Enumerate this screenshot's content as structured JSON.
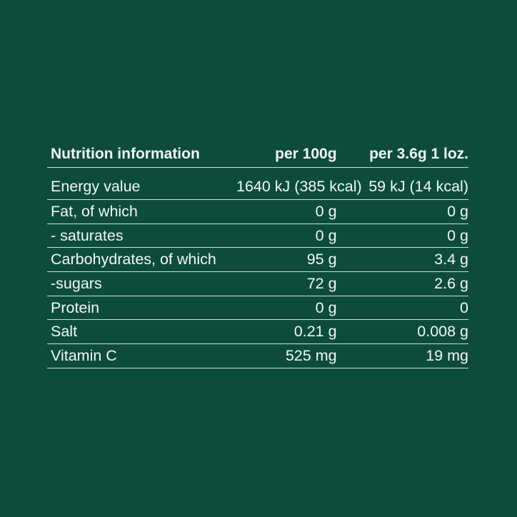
{
  "table": {
    "header": [
      "Nutrition information",
      "per 100g",
      "per 3.6g 1 loz."
    ],
    "rows": [
      [
        "Energy value",
        "1640 kJ (385 kcal)",
        "59 kJ (14 kcal)"
      ],
      [
        "Fat, of which",
        "0 g",
        "0 g"
      ],
      [
        "- saturates",
        "0 g",
        "0 g"
      ],
      [
        "Carbohydrates, of which",
        "95 g",
        "3.4 g"
      ],
      [
        "-sugars",
        "72 g",
        "2.6 g"
      ],
      [
        "Protein",
        "0 g",
        "0"
      ],
      [
        "Salt",
        "0.21 g",
        "0.008 g"
      ],
      [
        "Vitamin C",
        "525 mg",
        "19 mg"
      ]
    ]
  },
  "colors": {
    "background": "#0d4c3c",
    "text": "#f2f7f4",
    "rule": "#c9e0d6"
  }
}
